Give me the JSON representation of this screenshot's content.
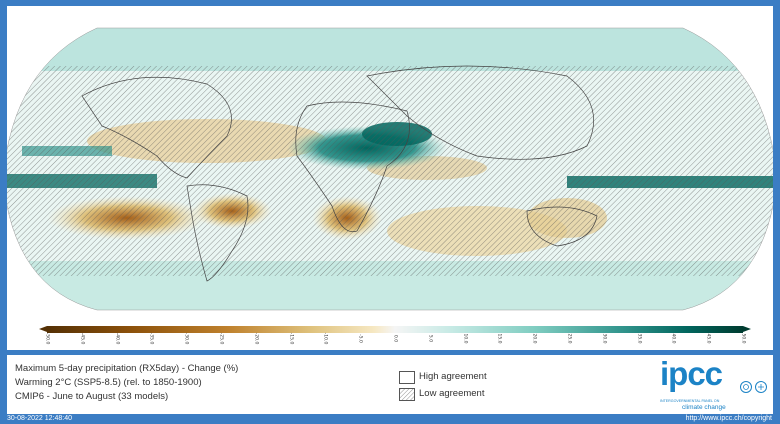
{
  "colorbar": {
    "ticks": [
      "-50.0",
      "-45.0",
      "-40.0",
      "-35.0",
      "-30.0",
      "-25.0",
      "-20.0",
      "-15.0",
      "-10.0",
      "-5.0",
      "0.0",
      "5.0",
      "10.0",
      "15.0",
      "20.0",
      "25.0",
      "30.0",
      "35.0",
      "40.0",
      "45.0",
      "50.0"
    ],
    "colors": {
      "dry": "#8c510a",
      "wet": "#01665e"
    }
  },
  "info": {
    "title": "Maximum 5-day precipitation (RX5day) - Change (%)",
    "scenario": "Warming 2°C (SSP5-8.5) (rel. to 1850-1900)",
    "models": "CMIP6 - June to August (33 models)"
  },
  "legend": {
    "high": "High agreement",
    "low": "Low agreement"
  },
  "logo": {
    "name": "ipcc",
    "subtitle": "INTERGOVERNMENTAL PANEL ON",
    "subtitle2": "climate change"
  },
  "footer": {
    "timestamp": "30-08-2022 12:48:40",
    "copyright": "http://www.ipcc.ch/copyright"
  }
}
